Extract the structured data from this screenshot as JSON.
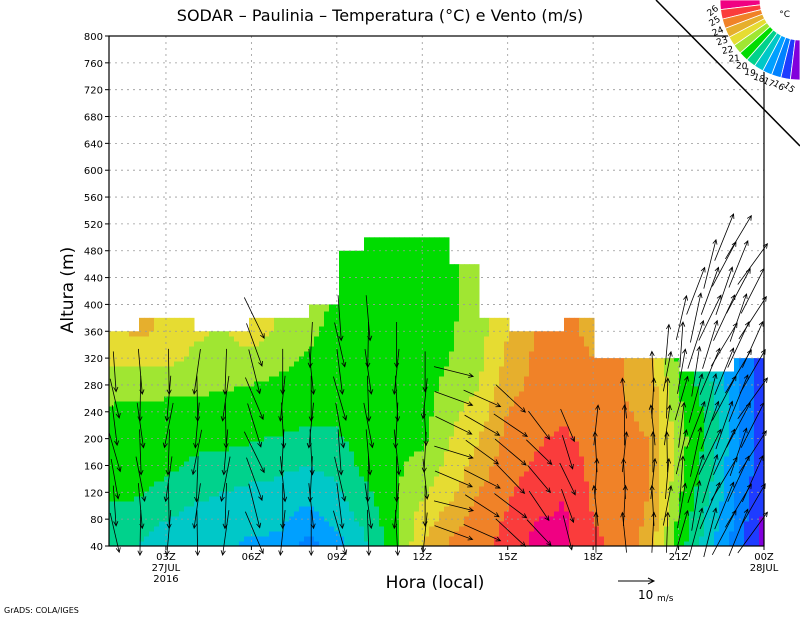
{
  "chart_data": {
    "type": "heatmap",
    "title": "SODAR – Paulinia – Temperatura (°C) e Vento (m/s)",
    "xlabel": "Hora (local)",
    "ylabel": "Altura (m)",
    "xlim": [
      1,
      24
    ],
    "ylim": [
      40,
      800
    ],
    "grid": true,
    "yticks": [
      40,
      80,
      120,
      160,
      200,
      240,
      280,
      320,
      360,
      400,
      440,
      480,
      520,
      560,
      600,
      640,
      680,
      720,
      760,
      800
    ],
    "xticks": [
      {
        "hour": 3,
        "lines": [
          "03Z",
          "27JUL",
          "2016"
        ]
      },
      {
        "hour": 6,
        "lines": [
          "06Z"
        ]
      },
      {
        "hour": 9,
        "lines": [
          "09Z"
        ]
      },
      {
        "hour": 12,
        "lines": [
          "12Z"
        ]
      },
      {
        "hour": 15,
        "lines": [
          "15Z"
        ]
      },
      {
        "hour": 18,
        "lines": [
          "18Z"
        ]
      },
      {
        "hour": 21,
        "lines": [
          "21Z"
        ]
      },
      {
        "hour": 24,
        "lines": [
          "00Z",
          "28JUL"
        ]
      }
    ],
    "legend": {
      "unit": "°C",
      "placement": "top-right",
      "thresholds": [
        15,
        16,
        17,
        18,
        19,
        20,
        21,
        22,
        23,
        24,
        25,
        26
      ],
      "colors": [
        "#8200dc",
        "#1e3cff",
        "#0082ff",
        "#00a0ff",
        "#00c8c8",
        "#00d28c",
        "#00dc00",
        "#a0e632",
        "#e6dc32",
        "#e6af2d",
        "#f08228",
        "#fa3c3c",
        "#f00082"
      ]
    },
    "temperature": {
      "hours": [
        1,
        2,
        3,
        4,
        5,
        6,
        7,
        8,
        9,
        10,
        11,
        12,
        13,
        14,
        15,
        16,
        17,
        18,
        19,
        20,
        21,
        22,
        23,
        24
      ],
      "levels": [
        40,
        80,
        120,
        160,
        200,
        240,
        280,
        320,
        360,
        400,
        440,
        480,
        520
      ],
      "values": [
        [
          19.5,
          19.5,
          20.3,
          20.5,
          20.6,
          20.8,
          21.5,
          22.3,
          22.7
        ],
        [
          19.0,
          19.3,
          20.2,
          20.5,
          20.6,
          20.8,
          21.3,
          22.4,
          23.2
        ],
        [
          18.7,
          19.0,
          19.6,
          20.3,
          20.5,
          20.7,
          21.3,
          22.3,
          22.8
        ],
        [
          18.3,
          18.7,
          19.2,
          19.8,
          20.3,
          20.7,
          21.2,
          21.8,
          22.2
        ],
        [
          18.2,
          18.5,
          19.0,
          19.6,
          20.3,
          20.7,
          21.1,
          21.6,
          21.8
        ],
        [
          17.8,
          18.3,
          18.8,
          19.4,
          20.1,
          20.6,
          21.0,
          21.5,
          22.8
        ],
        [
          17.8,
          18.2,
          18.7,
          19.2,
          19.9,
          20.5,
          20.8,
          21.3,
          21.7
        ],
        [
          16.5,
          17.5,
          18.4,
          19.0,
          19.7,
          20.3,
          20.6,
          20.9,
          21.2,
          21.5
        ],
        [
          17.5,
          18.3,
          18.8,
          19.3,
          19.8,
          20.3,
          20.5,
          20.6,
          20.7,
          20.8,
          20.6,
          20.5
        ],
        [
          18.8,
          19.3,
          19.8,
          20.3,
          20.6,
          20.7,
          20.8,
          20.8,
          20.6,
          20.5,
          20.3,
          20.2,
          19.8
        ],
        [
          20.5,
          20.7,
          20.8,
          20.8,
          20.7,
          20.6,
          20.6,
          20.6,
          20.5,
          20.4,
          20.3,
          20.3,
          20.3
        ],
        [
          23.0,
          22.5,
          21.8,
          21.3,
          20.8,
          20.6,
          20.6,
          20.5,
          20.5,
          20.4,
          20.4,
          20.4
        ],
        [
          24.2,
          23.5,
          22.8,
          22.3,
          22.0,
          21.7,
          21.3,
          21.0,
          20.9,
          20.8,
          20.8
        ],
        [
          24.8,
          24.5,
          24.0,
          23.5,
          23.0,
          22.5,
          22.0,
          21.8,
          21.6,
          21.5
        ],
        [
          25.3,
          25.1,
          24.9,
          24.6,
          24.3,
          24.0,
          23.6,
          23.2,
          23.0
        ],
        [
          26.3,
          26.0,
          25.5,
          25.1,
          24.9,
          24.6,
          24.3,
          24.2,
          24.0
        ],
        [
          26.2,
          26.1,
          26.0,
          25.6,
          25.2,
          24.8,
          24.5,
          24.4,
          24.2,
          24.2
        ],
        [
          25.2,
          25.0,
          24.8,
          24.7,
          24.6,
          24.4,
          24.2,
          24.0,
          23.8
        ],
        [
          24.8,
          24.6,
          24.5,
          24.3,
          24.2,
          24.1,
          24.0,
          24.0
        ],
        [
          23.5,
          23.8,
          24.0,
          24.0,
          24.0,
          23.8,
          23.6,
          23.3
        ],
        [
          20.5,
          20.8,
          21.2,
          21.5,
          21.5,
          21.3,
          21.0,
          20.8
        ],
        [
          18.5,
          18.8,
          19.2,
          19.5,
          19.8,
          19.8,
          19.4,
          19.0
        ],
        [
          16.6,
          16.8,
          17.0,
          17.2,
          17.4,
          17.4,
          17.3,
          17.1
        ],
        [
          14.6,
          14.8,
          15.0,
          15.2,
          15.4,
          15.4,
          15.4,
          15.4
        ]
      ],
      "top_profile": [
        {
          "from": 1,
          "to": 2,
          "top": 360
        },
        {
          "from": 2,
          "to": 4,
          "top": 380
        },
        {
          "from": 4,
          "to": 6,
          "top": 360
        },
        {
          "from": 6,
          "to": 8,
          "top": 380
        },
        {
          "from": 8,
          "to": 9,
          "top": 400
        },
        {
          "from": 9,
          "to": 10,
          "top": 480
        },
        {
          "from": 10,
          "to": 13,
          "top": 500
        },
        {
          "from": 13,
          "to": 14,
          "top": 460
        },
        {
          "from": 14,
          "to": 15,
          "top": 380
        },
        {
          "from": 15,
          "to": 17,
          "top": 360
        },
        {
          "from": 17,
          "to": 18,
          "top": 380
        },
        {
          "from": 18,
          "to": 21,
          "top": 320
        },
        {
          "from": 21,
          "to": 23,
          "top": 300
        },
        {
          "from": 23,
          "to": 24,
          "top": 320
        }
      ]
    },
    "wind": {
      "columns": [
        {
          "hour": 1.2,
          "top": 300,
          "dir": -80,
          "speed": 8
        },
        {
          "hour": 2.1,
          "top": 300,
          "dir": -85,
          "speed": 9
        },
        {
          "hour": 3.1,
          "top": 300,
          "dir": -95,
          "speed": 9
        },
        {
          "hour": 4.1,
          "top": 300,
          "dir": -95,
          "speed": 9
        },
        {
          "hour": 5.1,
          "top": 300,
          "dir": -95,
          "speed": 9
        },
        {
          "hour": 6.1,
          "top": 400,
          "dir": -70,
          "speed": 9
        },
        {
          "hour": 7.1,
          "top": 320,
          "dir": -90,
          "speed": 9
        },
        {
          "hour": 8.1,
          "top": 340,
          "dir": -90,
          "speed": 9
        },
        {
          "hour": 9.1,
          "top": 380,
          "dir": -80,
          "speed": 9
        },
        {
          "hour": 10.1,
          "top": 380,
          "dir": -85,
          "speed": 9
        },
        {
          "hour": 11.1,
          "top": 360,
          "dir": -90,
          "speed": 9
        },
        {
          "hour": 12.1,
          "top": 300,
          "dir": -90,
          "speed": 8
        },
        {
          "hour": 13.1,
          "top": 300,
          "dir": -20,
          "speed": 8
        },
        {
          "hour": 14.1,
          "top": 280,
          "dir": -30,
          "speed": 8
        },
        {
          "hour": 15.1,
          "top": 260,
          "dir": -40,
          "speed": 8
        },
        {
          "hour": 16.1,
          "top": 240,
          "dir": -50,
          "speed": 7
        },
        {
          "hour": 17.1,
          "top": 220,
          "dir": -70,
          "speed": 7
        },
        {
          "hour": 18.1,
          "top": 240,
          "dir": 90,
          "speed": 8
        },
        {
          "hour": 19.1,
          "top": 280,
          "dir": 90,
          "speed": 8
        },
        {
          "hour": 20.1,
          "top": 320,
          "dir": 90,
          "speed": 8
        },
        {
          "hour": 20.6,
          "top": 360,
          "dir": 85,
          "speed": 8
        },
        {
          "hour": 21.1,
          "top": 400,
          "dir": 80,
          "speed": 9
        },
        {
          "hour": 21.6,
          "top": 440,
          "dir": 75,
          "speed": 10
        },
        {
          "hour": 22.1,
          "top": 480,
          "dir": 70,
          "speed": 10
        },
        {
          "hour": 22.6,
          "top": 500,
          "dir": 65,
          "speed": 10
        },
        {
          "hour": 23.1,
          "top": 500,
          "dir": 65,
          "speed": 10
        },
        {
          "hour": 23.6,
          "top": 480,
          "dir": 60,
          "speed": 10
        }
      ],
      "reference": {
        "speed": 10,
        "label": "10",
        "unit": "m/s"
      }
    },
    "credit": "GrADS: COLA/IGES"
  }
}
